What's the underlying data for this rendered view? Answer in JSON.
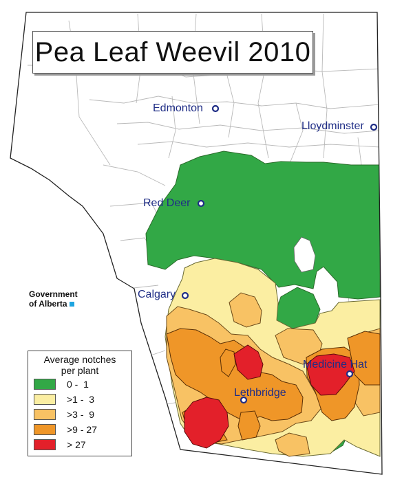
{
  "map": {
    "title": "Pea Leaf Weevil 2010",
    "branding": {
      "line1": "Government",
      "line2": "of Alberta"
    },
    "cities": [
      {
        "name": "Edmonton"
      },
      {
        "name": "Lloydminster"
      },
      {
        "name": "Red Deer"
      },
      {
        "name": "Calgary"
      },
      {
        "name": "Medicine Hat"
      },
      {
        "name": "Lethbridge"
      }
    ],
    "legend": {
      "title_line1": "Average notches",
      "title_line2": "per plant",
      "classes": [
        {
          "label": "0 -  1",
          "color": "#32a846"
        },
        {
          "label": ">1 -  3",
          "color": "#fbeea2"
        },
        {
          "label": ">3 -  9",
          "color": "#f8c264"
        },
        {
          "label": ">9 - 27",
          "color": "#ef9628"
        },
        {
          "label": "> 27",
          "color": "#e3202a"
        }
      ]
    },
    "colors": {
      "city_marker": "#1f2d86",
      "boundary": "#222222",
      "county_lines": "#b9b9b9"
    }
  }
}
